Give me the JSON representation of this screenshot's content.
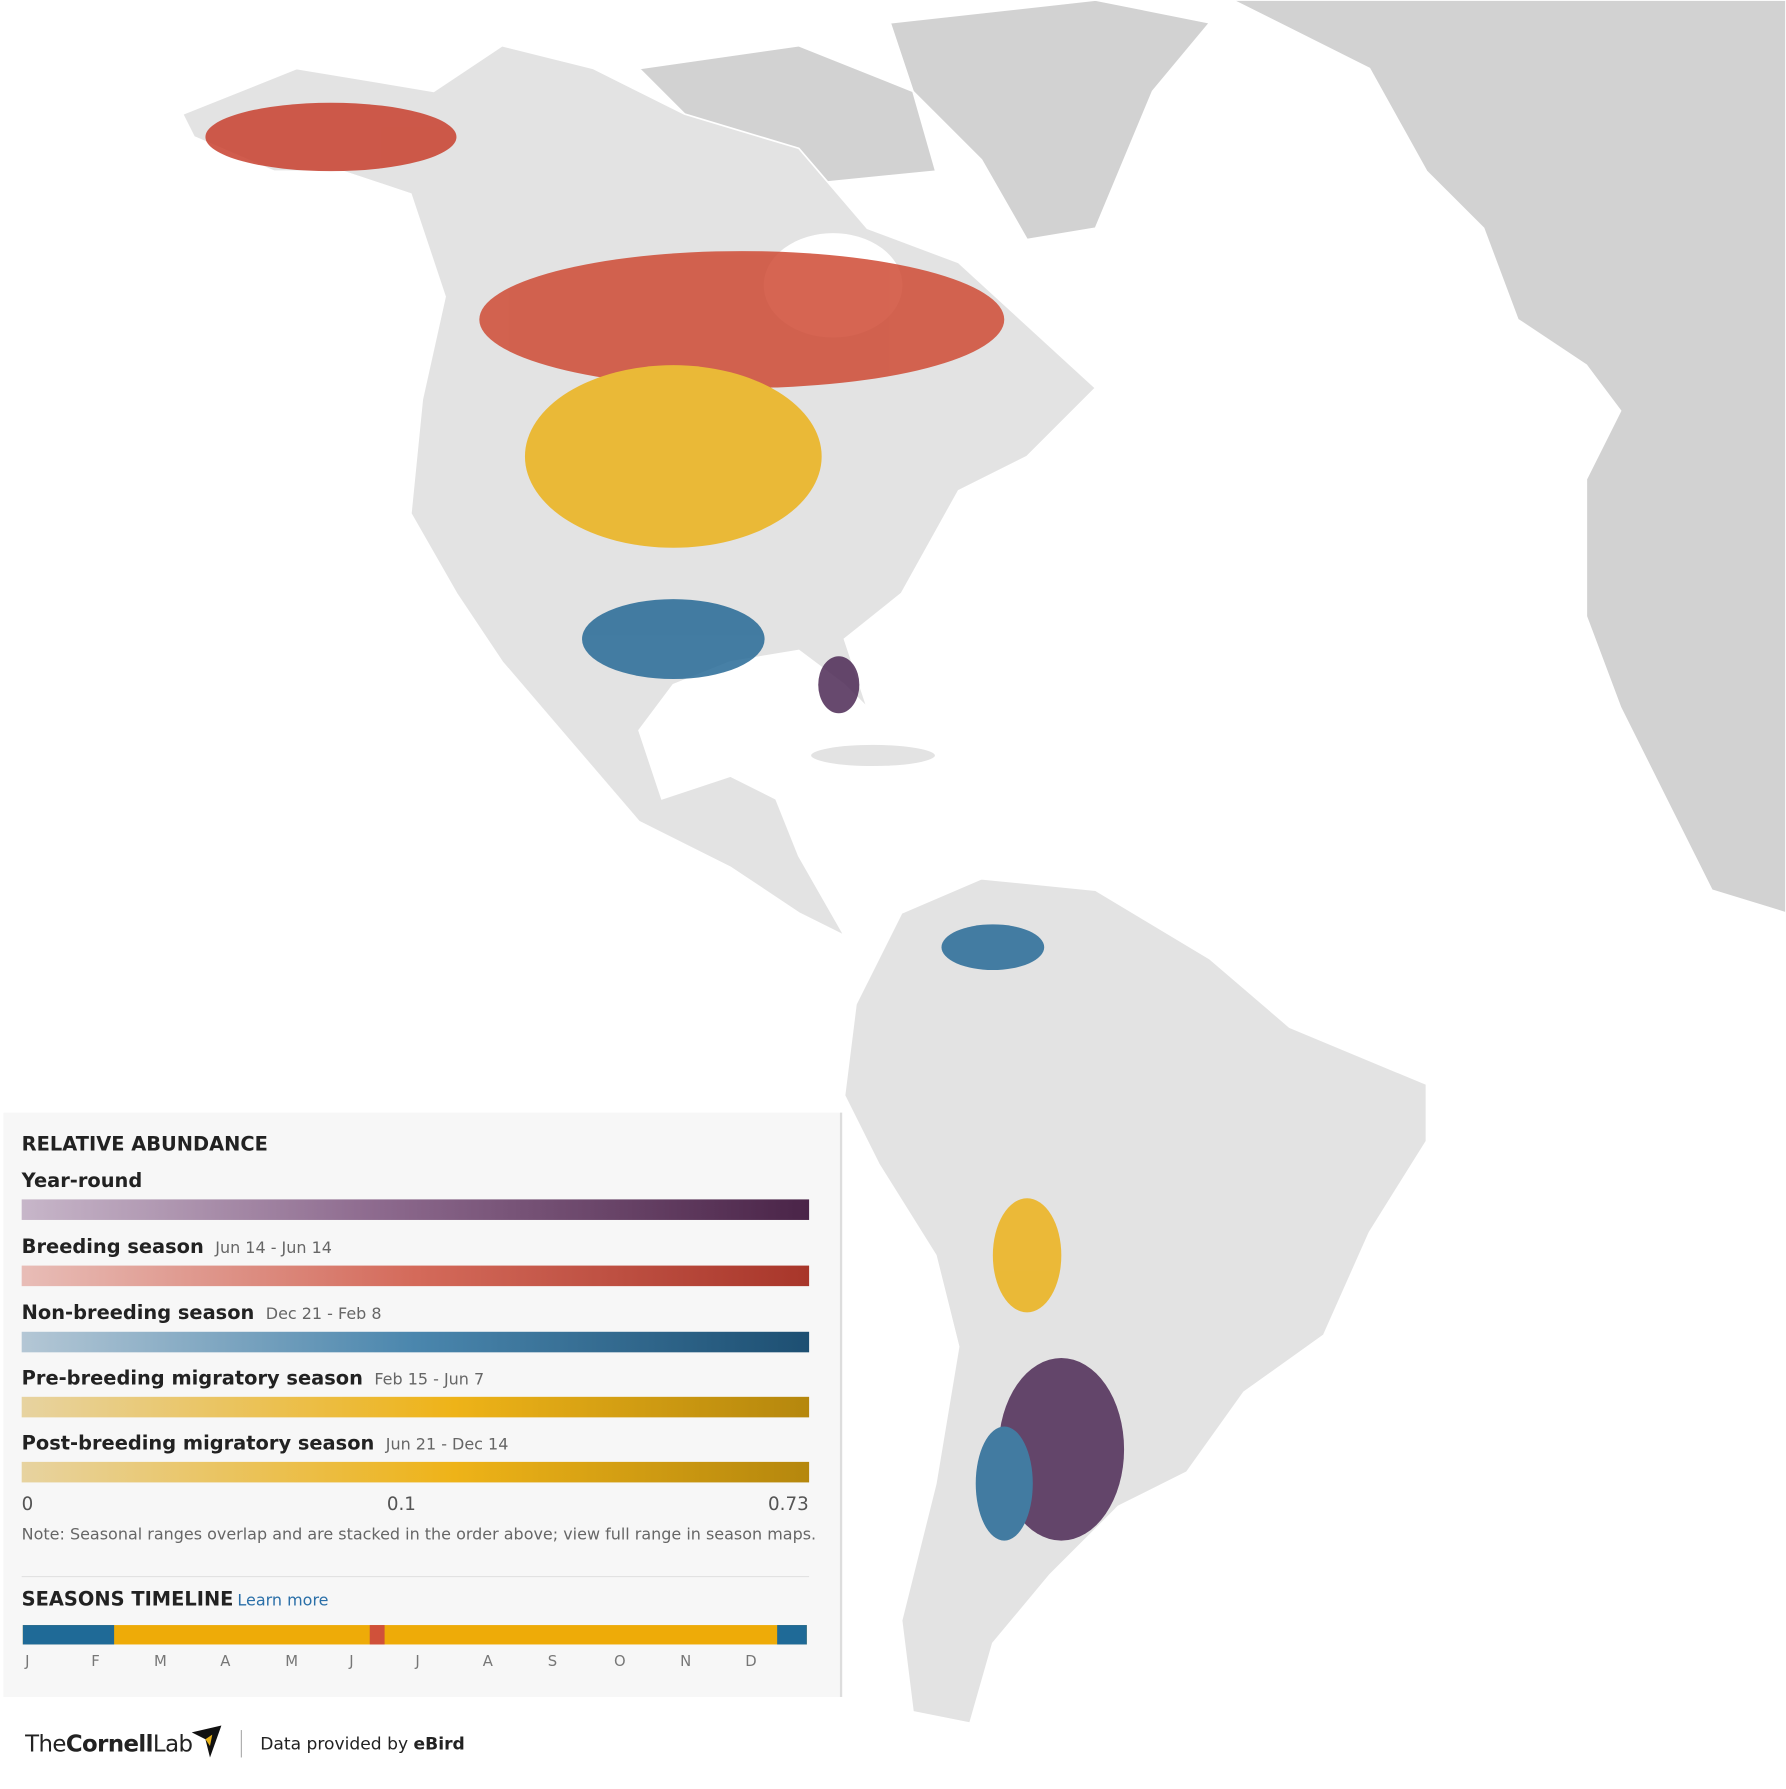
{
  "legend": {
    "title": "RELATIVE ABUNDANCE",
    "seasons": [
      {
        "name": "Year-round"
      },
      {
        "name": "Breeding season",
        "dates": "Jun 14 - Jun 14"
      },
      {
        "name": "Non-breeding season",
        "dates": "Dec 21 - Feb 8"
      },
      {
        "name": "Pre-breeding migratory season",
        "dates": "Feb 15 - Jun 7"
      },
      {
        "name": "Post-breeding migratory season",
        "dates": "Jun 21 - Dec 14"
      }
    ],
    "scale": [
      "0",
      "0.1",
      "0.73"
    ],
    "note": "Note: Seasonal ranges overlap and are stacked in the order above; view full range in season maps."
  },
  "timeline": {
    "title": "SEASONS TIMELINE",
    "link": "Learn more",
    "months": [
      "J",
      "F",
      "M",
      "A",
      "M",
      "J",
      "J",
      "A",
      "S",
      "O",
      "N",
      "D"
    ]
  },
  "footer": {
    "logo_pre": "The",
    "logo_bold": "Cornell",
    "logo_post": "Lab",
    "credit": "Data provided by",
    "credit_bold": "eBird"
  }
}
